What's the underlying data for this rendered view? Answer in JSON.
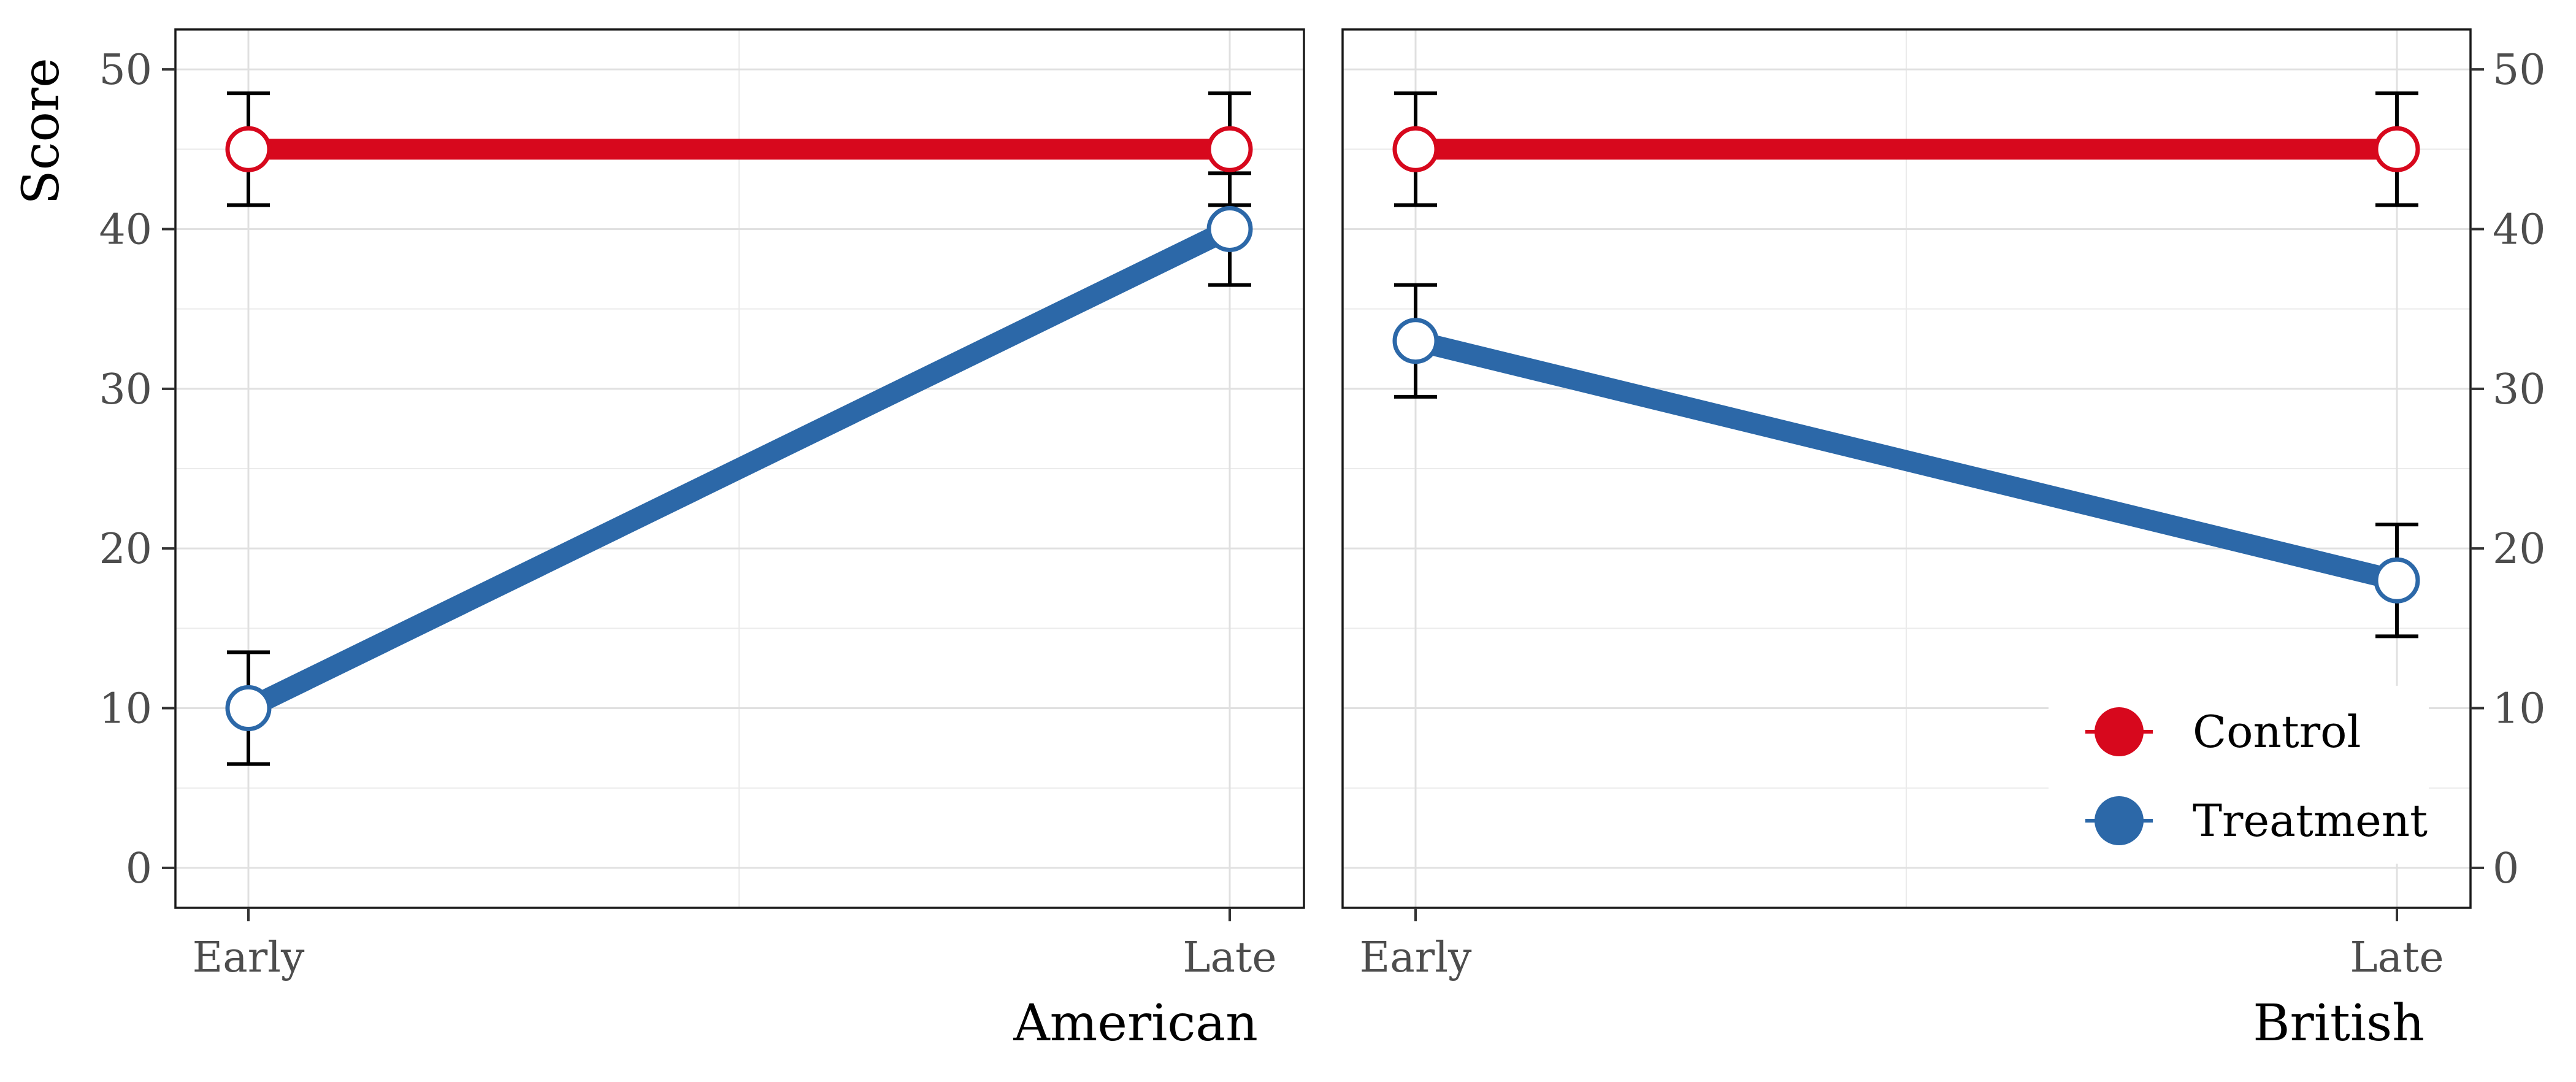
{
  "chart_data": {
    "type": "line",
    "ylabel": "Score",
    "categories": [
      "Early",
      "Late"
    ],
    "ylim": [
      -2.5,
      52.5
    ],
    "yticks": [
      0,
      10,
      20,
      30,
      40,
      50
    ],
    "grid": true,
    "legend_position": "bottom-right (inside right panel)",
    "legend": [
      {
        "name": "Control",
        "color": "#d7081d"
      },
      {
        "name": "Treatment",
        "color": "#2c68a8"
      }
    ],
    "panels": [
      {
        "xlabel": "American",
        "series": [
          {
            "name": "Control",
            "values": [
              45,
              45
            ],
            "err_low": [
              41.5,
              41.5
            ],
            "err_high": [
              48.5,
              48.5
            ]
          },
          {
            "name": "Treatment",
            "values": [
              10,
              40
            ],
            "err_low": [
              6.5,
              36.5
            ],
            "err_high": [
              13.5,
              43.5
            ]
          }
        ]
      },
      {
        "xlabel": "British",
        "series": [
          {
            "name": "Control",
            "values": [
              45,
              45
            ],
            "err_low": [
              41.5,
              41.5
            ],
            "err_high": [
              48.5,
              48.5
            ]
          },
          {
            "name": "Treatment",
            "values": [
              33,
              18
            ],
            "err_low": [
              29.5,
              14.5
            ],
            "err_high": [
              36.5,
              21.5
            ]
          }
        ]
      }
    ]
  }
}
